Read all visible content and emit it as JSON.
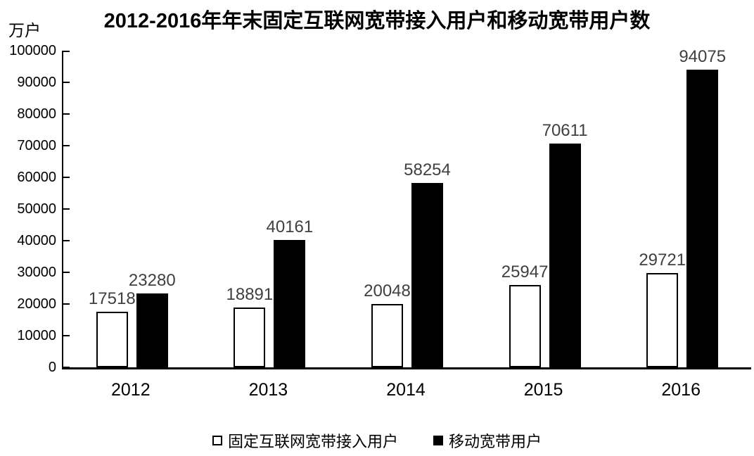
{
  "chart_data": {
    "type": "bar",
    "title": "2012-2016年年末固定互联网宽带接入用户和移动宽带用户数",
    "ylabel": "万户",
    "categories": [
      "2012",
      "2013",
      "2014",
      "2015",
      "2016"
    ],
    "series": [
      {
        "key": "fixed-broadband",
        "name": "固定互联网宽带接入用户",
        "fill": "#ffffff",
        "border": "#000000",
        "border_width": 2,
        "values": [
          17518,
          18891,
          20048,
          25947,
          29721
        ]
      },
      {
        "key": "mobile-broadband",
        "name": "移动宽带用户",
        "fill": "#000000",
        "border": "#000000",
        "border_width": 0,
        "values": [
          23280,
          40161,
          58254,
          70611,
          94075
        ]
      }
    ],
    "ylim": [
      0,
      100000
    ],
    "yticks": [
      "0",
      "10000",
      "20000",
      "30000",
      "40000",
      "50000",
      "60000",
      "70000",
      "80000",
      "90000",
      "100000"
    ],
    "grid": false,
    "legend_position": "bottom",
    "value_label_color": "#404040",
    "axis_color": "#000000"
  }
}
